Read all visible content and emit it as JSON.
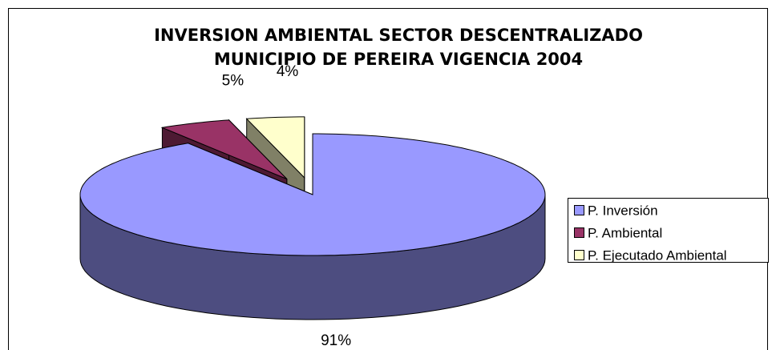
{
  "chart_data": {
    "type": "pie3d",
    "title": "INVERSION AMBIENTAL SECTOR DESCENTRALIZADO",
    "subtitle": "MUNICIPIO DE PEREIRA VIGENCIA 2004",
    "categories": [
      "P. Inversión",
      "P. Ambiental",
      "P. Ejecutado Ambiental"
    ],
    "values": [
      91,
      5,
      4
    ],
    "value_labels": [
      "91%",
      "5%",
      "4%"
    ],
    "colors": [
      "#9999ff",
      "#993366",
      "#ffffcc"
    ],
    "legend": "right"
  }
}
